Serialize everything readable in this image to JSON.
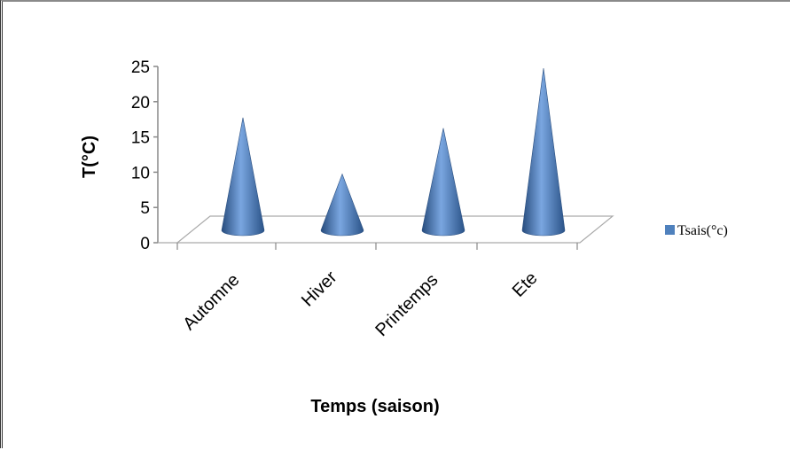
{
  "chart_data": {
    "type": "bar",
    "style": "3d-cone",
    "categories": [
      "Automne",
      "Hiver",
      "Printemps",
      "Ete"
    ],
    "series": [
      {
        "name": "Tsais(°c)",
        "values": [
          19,
          11,
          17.5,
          26
        ],
        "color": "#4f81bd"
      }
    ],
    "xlabel": "Temps (saison)",
    "ylabel": "T(°C)",
    "ylim": [
      0,
      25
    ],
    "yticks": [
      0,
      5,
      10,
      15,
      20,
      25
    ],
    "grid": false,
    "legend_position": "right"
  }
}
